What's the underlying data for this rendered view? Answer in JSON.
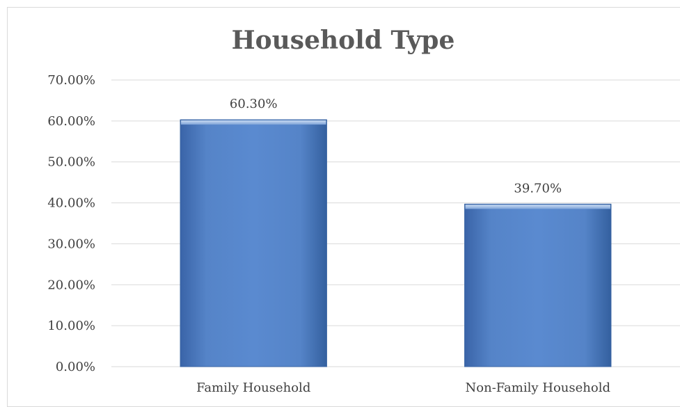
{
  "chart_data": {
    "type": "bar",
    "title": "Household Type",
    "categories": [
      "Family Household",
      "Non-Family Household"
    ],
    "values": [
      60.3,
      39.7
    ],
    "data_labels": [
      "60.30%",
      "39.70%"
    ],
    "ylim": [
      0,
      70
    ],
    "y_ticks": [
      0,
      10,
      20,
      30,
      40,
      50,
      60,
      70
    ],
    "y_tick_labels": [
      "0.00%",
      "10.00%",
      "20.00%",
      "30.00%",
      "40.00%",
      "50.00%",
      "60.00%",
      "70.00%"
    ],
    "xlabel": "",
    "ylabel": "",
    "grid": true,
    "legend": "none",
    "bar_color": "#4f81bd",
    "gridline_color": "#d9d9d9"
  }
}
